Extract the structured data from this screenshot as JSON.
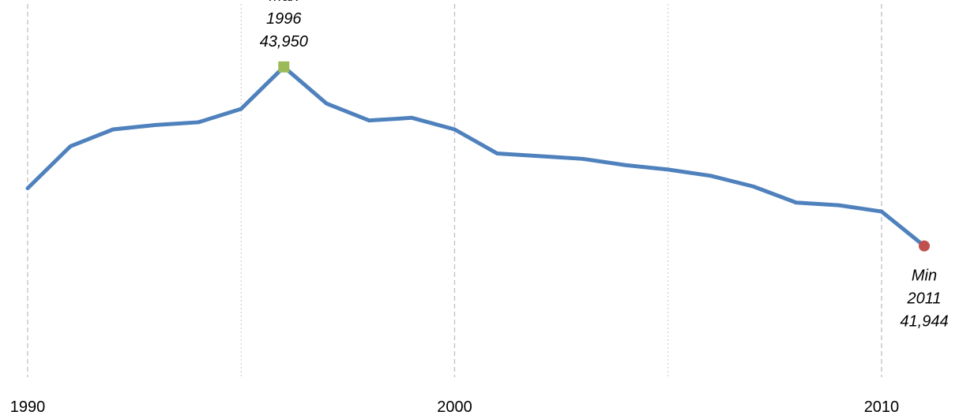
{
  "chart_data": {
    "type": "line",
    "title": "",
    "xlabel": "",
    "ylabel": "",
    "xlim": [
      1990,
      2011
    ],
    "ylim": [
      40500,
      44700
    ],
    "grid": {
      "vertical": true,
      "horizontal": false,
      "major_style": "dashed",
      "minor_style": "dotted"
    },
    "x_ticks": [
      {
        "value": 1990,
        "label": "1990"
      },
      {
        "value": 2000,
        "label": "2000"
      },
      {
        "value": 2010,
        "label": "2010"
      }
    ],
    "minor_gridlines": [
      1995,
      2005
    ],
    "series": [
      {
        "color": "#4f81bd",
        "x": [
          1990,
          1991,
          1992,
          1993,
          1994,
          1995,
          1996,
          1997,
          1998,
          1999,
          2000,
          2001,
          2002,
          2003,
          2004,
          2005,
          2006,
          2007,
          2008,
          2009,
          2010,
          2011
        ],
        "y": [
          42590,
          43060,
          43250,
          43300,
          43330,
          43480,
          43950,
          43540,
          43350,
          43380,
          43250,
          42980,
          42950,
          42920,
          42850,
          42800,
          42730,
          42610,
          42430,
          42400,
          42330,
          41944
        ]
      }
    ],
    "annotations": [
      {
        "kind": "max",
        "x": 1996,
        "y": 43950,
        "lines": [
          "Max",
          "1996",
          "43,950"
        ],
        "marker": "square",
        "color": "#9bbb59",
        "position": "above"
      },
      {
        "kind": "min",
        "x": 2011,
        "y": 41944,
        "lines": [
          "Min",
          "2011",
          "41,944"
        ],
        "marker": "circle",
        "color": "#c0504d",
        "position": "below"
      }
    ]
  }
}
